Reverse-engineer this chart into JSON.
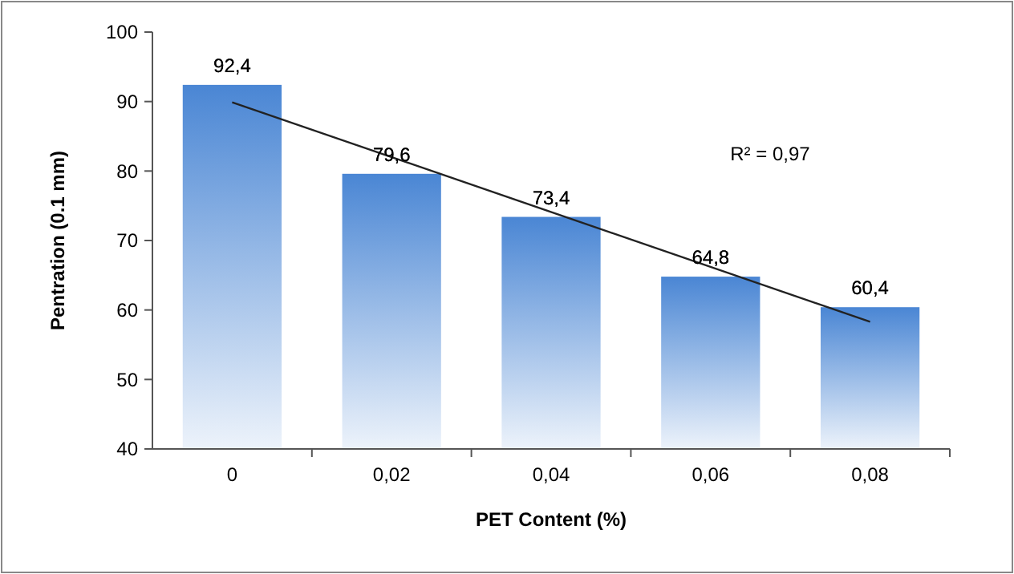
{
  "chart_data": {
    "type": "bar",
    "xlabel": "PET Content (%)",
    "ylabel": "Pentration (0.1 mm)",
    "categories": [
      "0",
      "0,02",
      "0,04",
      "0,06",
      "0,08"
    ],
    "series": [
      {
        "color": "#4a86d4",
        "values": [
          92.4,
          79.6,
          73.4,
          64.8,
          60.4
        ],
        "value_labels": [
          "92,4",
          "79,6",
          "73,4",
          "64,8",
          "60,4"
        ]
      },
      {
        "type": "line",
        "color": "#222222",
        "x": [
          "0",
          "0,08"
        ],
        "values": [
          89.9,
          58.3
        ]
      }
    ],
    "ylim": [
      40,
      100
    ],
    "yticks": [
      40,
      50,
      60,
      70,
      80,
      90,
      100
    ],
    "annotations": [
      "R² = 0,97"
    ],
    "grid": false
  }
}
